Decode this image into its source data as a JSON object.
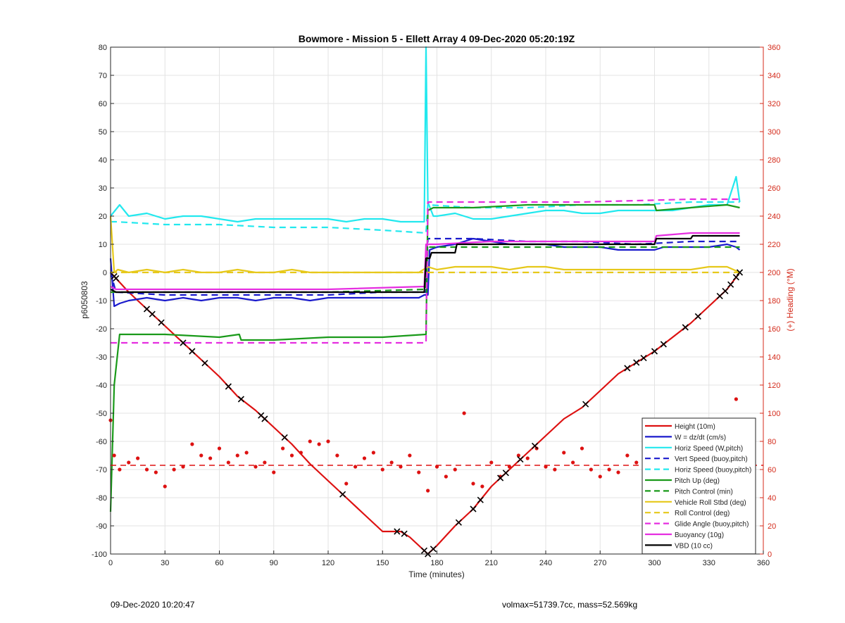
{
  "chart_data": {
    "type": "line",
    "title": "Bowmore - Mission 5 - Ellett Array 4 09-Dec-2020 05:20:19Z",
    "xlabel": "Time (minutes)",
    "ylabel_left": "p6050803",
    "ylabel_right": "(+) Heading (°M)",
    "xlim": [
      0,
      360
    ],
    "ylim_left": [
      -100,
      80
    ],
    "ylim_right": [
      0,
      360
    ],
    "xticks": [
      0,
      30,
      60,
      90,
      120,
      150,
      180,
      210,
      240,
      270,
      300,
      330,
      360
    ],
    "yticks_left": [
      -100,
      -90,
      -80,
      -70,
      -60,
      -50,
      -40,
      -30,
      -20,
      -10,
      0,
      10,
      20,
      30,
      40,
      50,
      60,
      70,
      80
    ],
    "yticks_right": [
      0,
      20,
      40,
      60,
      80,
      100,
      120,
      140,
      160,
      180,
      200,
      220,
      240,
      260,
      280,
      300,
      320,
      340,
      360
    ],
    "grid": true,
    "legend_position": "bottom-right",
    "series": [
      {
        "name": "Height (10m)",
        "color": "#dd1111",
        "style": "solid",
        "axis": "left",
        "x": [
          0,
          10,
          20,
          30,
          40,
          50,
          60,
          70,
          80,
          90,
          100,
          110,
          120,
          130,
          140,
          150,
          160,
          165,
          170,
          175,
          180,
          190,
          200,
          210,
          220,
          230,
          240,
          250,
          260,
          270,
          280,
          290,
          300,
          310,
          320,
          330,
          340,
          347
        ],
        "y": [
          0,
          -7,
          -13,
          -19,
          -25,
          -31,
          -37,
          -44,
          -49,
          -55,
          -61,
          -68,
          -74,
          -80,
          -86,
          -92,
          -92,
          -94,
          -97,
          -100,
          -97,
          -90,
          -84,
          -76,
          -70,
          -64,
          -58,
          -52,
          -48,
          -42,
          -36,
          -32,
          -28,
          -23,
          -18,
          -12,
          -6,
          0
        ]
      },
      {
        "name": "W = dz/dt (cm/s)",
        "color": "#1a1acc",
        "style": "solid",
        "axis": "left",
        "x": [
          0,
          2,
          5,
          10,
          20,
          30,
          40,
          50,
          60,
          70,
          80,
          90,
          100,
          110,
          120,
          130,
          140,
          150,
          160,
          170,
          173,
          175,
          176,
          180,
          190,
          200,
          210,
          220,
          230,
          240,
          250,
          260,
          270,
          280,
          290,
          300,
          305,
          310,
          320,
          330,
          340,
          345,
          347
        ],
        "y": [
          5,
          -12,
          -11,
          -10,
          -9,
          -10,
          -9,
          -10,
          -9,
          -9,
          -10,
          -9,
          -9,
          -10,
          -9,
          -9,
          -9,
          -9,
          -9,
          -9,
          -8,
          -8,
          8,
          9,
          10,
          12,
          11,
          10,
          10,
          10,
          9,
          9,
          9,
          8,
          8,
          8,
          9,
          9,
          9,
          9,
          10,
          9,
          8
        ]
      },
      {
        "name": "Horiz Speed (W,pitch)",
        "color": "#22e8ee",
        "style": "solid",
        "axis": "left",
        "x": [
          0,
          5,
          10,
          20,
          30,
          40,
          50,
          60,
          70,
          80,
          90,
          100,
          110,
          120,
          130,
          140,
          150,
          160,
          170,
          173,
          174,
          175,
          178,
          180,
          190,
          200,
          210,
          220,
          230,
          240,
          250,
          260,
          270,
          280,
          290,
          300,
          310,
          320,
          330,
          340,
          345,
          347
        ],
        "y": [
          20,
          24,
          20,
          21,
          19,
          20,
          20,
          19,
          18,
          19,
          19,
          19,
          19,
          19,
          18,
          19,
          19,
          18,
          18,
          18,
          80,
          25,
          20,
          20,
          21,
          19,
          19,
          20,
          21,
          22,
          22,
          21,
          21,
          22,
          22,
          22,
          22,
          23,
          24,
          24,
          34,
          25
        ]
      },
      {
        "name": "Vert Speed (buoy,pitch)",
        "color": "#1a1acc",
        "style": "dashed",
        "axis": "left",
        "x": [
          0,
          3,
          30,
          60,
          90,
          120,
          150,
          174,
          175,
          200,
          230,
          260,
          290,
          320,
          347
        ],
        "y": [
          0,
          -7,
          -8,
          -8,
          -8,
          -8,
          -7,
          -7,
          12,
          12,
          11,
          11,
          10,
          11,
          11
        ]
      },
      {
        "name": "Horiz Speed (buoy,pitch)",
        "color": "#22e8ee",
        "style": "dashed",
        "axis": "left",
        "x": [
          0,
          3,
          30,
          60,
          90,
          120,
          150,
          174,
          175,
          200,
          230,
          260,
          290,
          320,
          347
        ],
        "y": [
          18,
          18,
          17,
          17,
          16,
          16,
          15,
          14,
          24,
          23,
          23,
          24,
          24,
          25,
          25
        ]
      },
      {
        "name": "Pitch Up (deg)",
        "color": "#1a9a1a",
        "style": "solid",
        "axis": "left",
        "x": [
          0,
          2,
          5,
          30,
          60,
          71,
          72,
          90,
          120,
          150,
          174,
          175,
          178,
          200,
          230,
          260,
          290,
          300,
          301,
          320,
          340,
          347
        ],
        "y": [
          -85,
          -40,
          -22,
          -22,
          -23,
          -22,
          -24,
          -24,
          -23,
          -23,
          -22,
          22,
          23,
          23,
          24,
          24,
          24,
          24,
          22,
          23,
          24,
          23
        ]
      },
      {
        "name": "Pitch Control (min)",
        "color": "#1a9a1a",
        "style": "dashed",
        "axis": "left",
        "x": [
          0,
          3,
          60,
          120,
          174,
          175,
          210,
          260,
          320,
          347
        ],
        "y": [
          -7,
          -7,
          -7,
          -7,
          -6,
          9,
          9,
          9,
          9,
          9
        ]
      },
      {
        "name": "Vehicle Roll Stbd (deg)",
        "color": "#e6c81a",
        "style": "solid",
        "axis": "left",
        "x": [
          0,
          2,
          4,
          10,
          20,
          30,
          40,
          50,
          60,
          70,
          80,
          90,
          100,
          110,
          120,
          130,
          140,
          150,
          160,
          170,
          175,
          180,
          190,
          200,
          210,
          220,
          230,
          240,
          250,
          260,
          270,
          280,
          290,
          300,
          310,
          320,
          330,
          340,
          347
        ],
        "y": [
          20,
          0,
          1,
          0,
          1,
          0,
          1,
          0,
          0,
          1,
          0,
          0,
          1,
          0,
          0,
          0,
          0,
          0,
          0,
          0,
          2,
          1,
          2,
          2,
          2,
          1,
          2,
          2,
          1,
          1,
          1,
          1,
          1,
          1,
          1,
          1,
          2,
          2,
          0
        ]
      },
      {
        "name": "Roll Control (deg)",
        "color": "#e6c81a",
        "style": "dashed",
        "axis": "left",
        "x": [
          0,
          3,
          60,
          120,
          174,
          175,
          210,
          260,
          320,
          347
        ],
        "y": [
          0,
          0,
          0,
          0,
          0,
          0,
          0,
          0,
          0,
          0
        ]
      },
      {
        "name": "Glide Angle (buoy,pitch)",
        "color": "#e52ee0",
        "style": "dashed",
        "axis": "left",
        "x": [
          0,
          3,
          60,
          120,
          174,
          175,
          210,
          260,
          320,
          347
        ],
        "y": [
          -25,
          -25,
          -25,
          -25,
          -25,
          25,
          25,
          25,
          26,
          26
        ]
      },
      {
        "name": "Buoyancy (10g)",
        "color": "#e52ee0",
        "style": "solid",
        "axis": "left",
        "x": [
          0,
          3,
          60,
          120,
          173,
          174,
          180,
          210,
          260,
          300,
          301,
          320,
          347
        ],
        "y": [
          -5,
          -6,
          -6,
          -6,
          -5,
          10,
          10,
          11,
          11,
          11,
          13,
          14,
          14
        ]
      },
      {
        "name": "VBD (10 cc)",
        "color": "#000000",
        "style": "solid",
        "axis": "left",
        "x": [
          0,
          3,
          60,
          120,
          173,
          174,
          176,
          177,
          180,
          190,
          191,
          210,
          260,
          300,
          301,
          320,
          321,
          347
        ],
        "y": [
          -6,
          -7,
          -7,
          -7,
          -7,
          5,
          5,
          7,
          7,
          7,
          10,
          10,
          10,
          10,
          12,
          12,
          13,
          13
        ]
      }
    ],
    "heading_series": {
      "name": "Heading (scatter)",
      "color": "#dd1111",
      "axis": "right",
      "mean_degrees": 63,
      "x": [
        0,
        2,
        5,
        10,
        15,
        20,
        25,
        30,
        35,
        40,
        45,
        50,
        55,
        60,
        65,
        70,
        75,
        80,
        85,
        90,
        95,
        100,
        105,
        110,
        115,
        120,
        125,
        130,
        135,
        140,
        145,
        150,
        155,
        160,
        165,
        170,
        175,
        180,
        185,
        190,
        195,
        200,
        205,
        210,
        215,
        220,
        225,
        230,
        235,
        240,
        245,
        250,
        255,
        260,
        265,
        270,
        275,
        280,
        285,
        290,
        295,
        300,
        305,
        310,
        315,
        320,
        325,
        330,
        335,
        340,
        345
      ],
      "y": [
        95,
        70,
        60,
        65,
        68,
        60,
        58,
        48,
        60,
        62,
        78,
        70,
        68,
        75,
        65,
        70,
        72,
        62,
        65,
        58,
        75,
        70,
        72,
        80,
        78,
        80,
        70,
        50,
        62,
        68,
        72,
        60,
        65,
        62,
        70,
        58,
        45,
        62,
        55,
        60,
        100,
        50,
        48,
        65,
        55,
        62,
        70,
        68,
        75,
        62,
        60,
        72,
        65,
        75,
        60,
        55,
        60,
        58,
        70,
        65,
        72,
        62,
        55,
        75,
        68,
        70,
        65,
        55,
        75,
        60,
        110
      ]
    },
    "markers": {
      "x": [
        2,
        3,
        20,
        23,
        28,
        40,
        45,
        52,
        65,
        72,
        83,
        85,
        96,
        128,
        158,
        162,
        173,
        175,
        178,
        192,
        200,
        204,
        215,
        218,
        226,
        234,
        262,
        285,
        290,
        294,
        300,
        305,
        317,
        324,
        336,
        339,
        342,
        345,
        347
      ],
      "axis": "left"
    }
  },
  "footer": {
    "left": "09-Dec-2020 10:20:47",
    "right": "volmax=51739.7cc, mass=52.569kg"
  }
}
